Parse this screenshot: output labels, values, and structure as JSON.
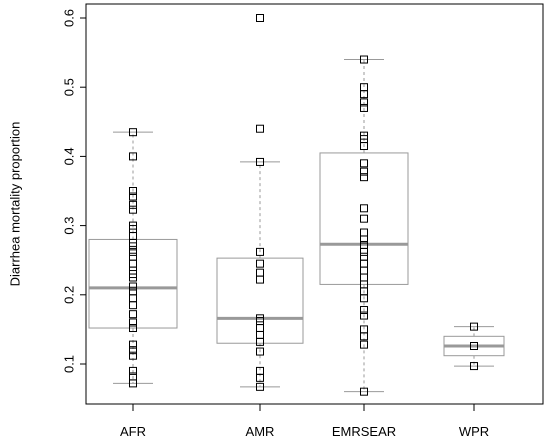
{
  "chart_data": {
    "type": "box",
    "title": "",
    "xlabel": "",
    "ylabel": "Diarrhea mortality proportion",
    "ylim": [
      0.04,
      0.625
    ],
    "yticks": [
      0.1,
      0.2,
      0.3,
      0.4,
      0.5,
      0.6
    ],
    "ytick_labels": [
      "0.1",
      "0.2",
      "0.3",
      "0.4",
      "0.5",
      "0.6"
    ],
    "categories": [
      "AFR",
      "AMR",
      "EMRSEAR",
      "WPR"
    ],
    "grid": false,
    "legend": "none",
    "colors": {
      "box": "#999999",
      "median": "#999999",
      "points": "#000000",
      "frame": "#000000"
    },
    "boxes": [
      {
        "category": "AFR",
        "whisker_low": 0.072,
        "q1": 0.152,
        "median": 0.21,
        "q3": 0.28,
        "whisker_high": 0.435,
        "points": [
          0.435,
          0.4,
          0.35,
          0.342,
          0.33,
          0.323,
          0.3,
          0.295,
          0.285,
          0.275,
          0.27,
          0.262,
          0.255,
          0.245,
          0.235,
          0.23,
          0.225,
          0.212,
          0.205,
          0.195,
          0.185,
          0.172,
          0.16,
          0.152,
          0.128,
          0.12,
          0.112,
          0.09,
          0.082,
          0.072
        ]
      },
      {
        "category": "AMR",
        "whisker_low": 0.067,
        "q1": 0.13,
        "median": 0.166,
        "q3": 0.253,
        "whisker_high": 0.392,
        "points": [
          0.6,
          0.44,
          0.392,
          0.262,
          0.245,
          0.232,
          0.222,
          0.166,
          0.162,
          0.152,
          0.142,
          0.132,
          0.118,
          0.09,
          0.08,
          0.067
        ]
      },
      {
        "category": "EMRSEAR",
        "whisker_low": 0.06,
        "q1": 0.215,
        "median": 0.273,
        "q3": 0.405,
        "whisker_high": 0.54,
        "points": [
          0.54,
          0.5,
          0.49,
          0.478,
          0.47,
          0.43,
          0.425,
          0.415,
          0.39,
          0.378,
          0.37,
          0.325,
          0.31,
          0.29,
          0.28,
          0.272,
          0.262,
          0.255,
          0.245,
          0.235,
          0.225,
          0.215,
          0.205,
          0.195,
          0.178,
          0.17,
          0.15,
          0.14,
          0.128,
          0.06
        ]
      },
      {
        "category": "WPR",
        "whisker_low": 0.097,
        "q1": 0.112,
        "median": 0.126,
        "q3": 0.14,
        "whisker_high": 0.154,
        "points": [
          0.154,
          0.126,
          0.097
        ]
      }
    ]
  }
}
